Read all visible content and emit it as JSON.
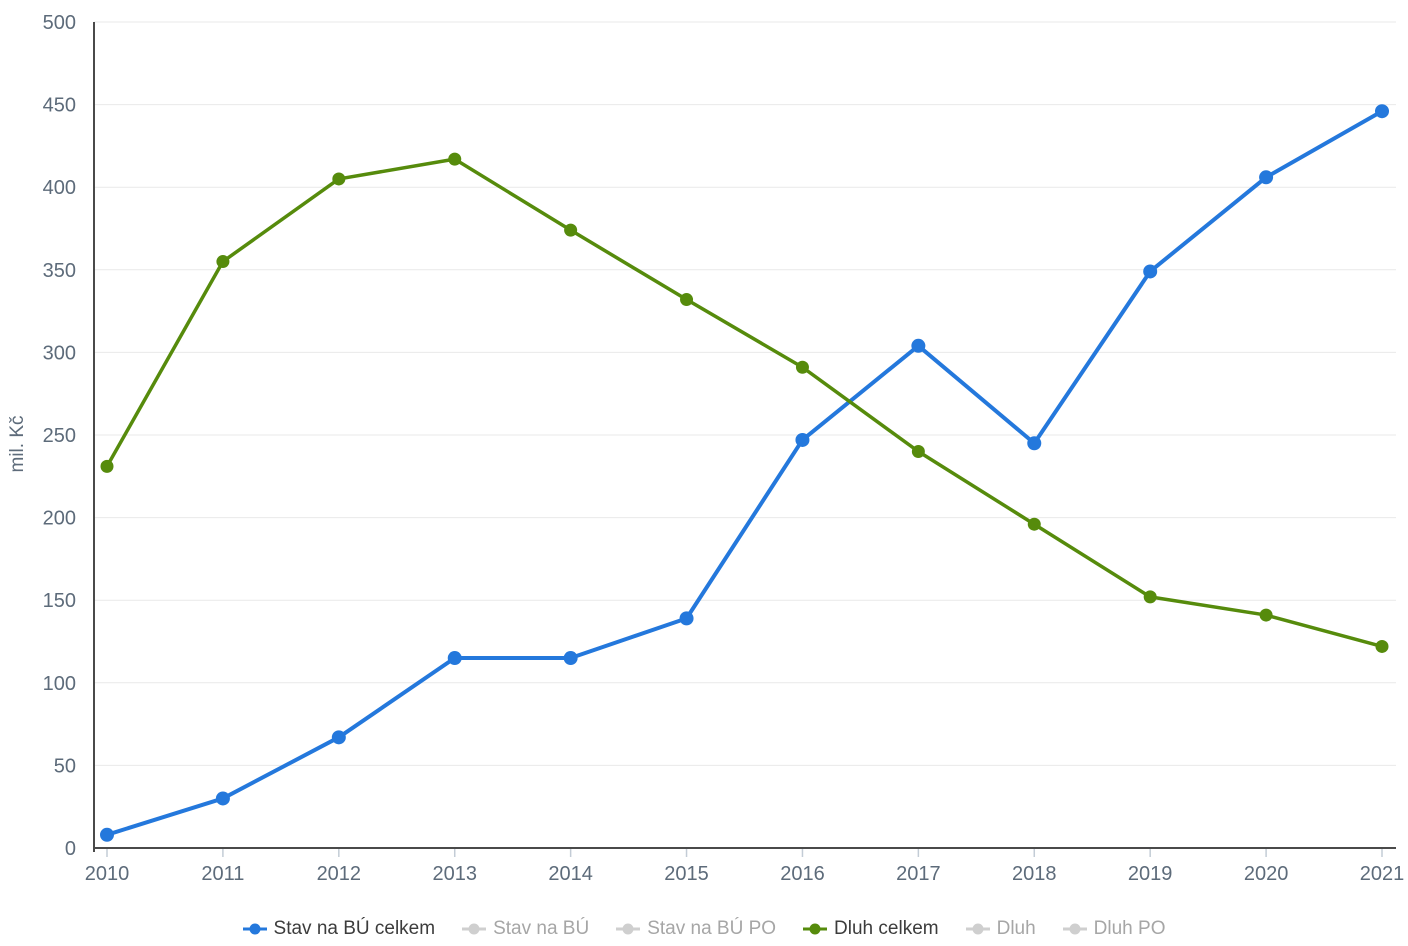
{
  "colors": {
    "blue_series": "#2478dc",
    "green_series": "#568b0c",
    "disabled_marker": "#cfcfcf",
    "disabled_text": "#a6a6a6",
    "legend_text": "#3c3c3c",
    "axis_text": "#5d6b7a",
    "axis_line": "#4a4a4a",
    "grid_line": "#e9e9e9",
    "tick_mark": "#c3ccd6",
    "background": "#ffffff"
  },
  "chart_data": {
    "type": "line",
    "title": "",
    "xlabel": "",
    "ylabel": "mil. Kč",
    "grid": true,
    "legend_position": "bottom",
    "categories": [
      "2010",
      "2011",
      "2012",
      "2013",
      "2014",
      "2015",
      "2016",
      "2017",
      "2018",
      "2019",
      "2020",
      "2021"
    ],
    "y_axis": {
      "min": 0,
      "max": 500,
      "step": 50,
      "tick_labels": [
        "0",
        "50",
        "100",
        "150",
        "200",
        "250",
        "300",
        "350",
        "400",
        "450",
        "500"
      ]
    },
    "series": [
      {
        "name": "Stav na BÚ celkem",
        "color": "#2478dc",
        "enabled": true,
        "line_width": 4,
        "marker_radius": 7,
        "values": [
          8,
          30,
          67,
          115,
          115,
          139,
          247,
          304,
          245,
          349,
          406,
          446
        ]
      },
      {
        "name": "Stav na BÚ",
        "color": "#cfcfcf",
        "enabled": false,
        "values": null
      },
      {
        "name": "Stav na BÚ PO",
        "color": "#cfcfcf",
        "enabled": false,
        "values": null
      },
      {
        "name": "Dluh celkem",
        "color": "#568b0c",
        "enabled": true,
        "line_width": 3.5,
        "marker_radius": 6.5,
        "values": [
          231,
          355,
          405,
          417,
          374,
          332,
          291,
          240,
          196,
          152,
          141,
          122
        ]
      },
      {
        "name": "Dluh",
        "color": "#cfcfcf",
        "enabled": false,
        "values": null
      },
      {
        "name": "Dluh PO",
        "color": "#cfcfcf",
        "enabled": false,
        "values": null
      }
    ]
  }
}
